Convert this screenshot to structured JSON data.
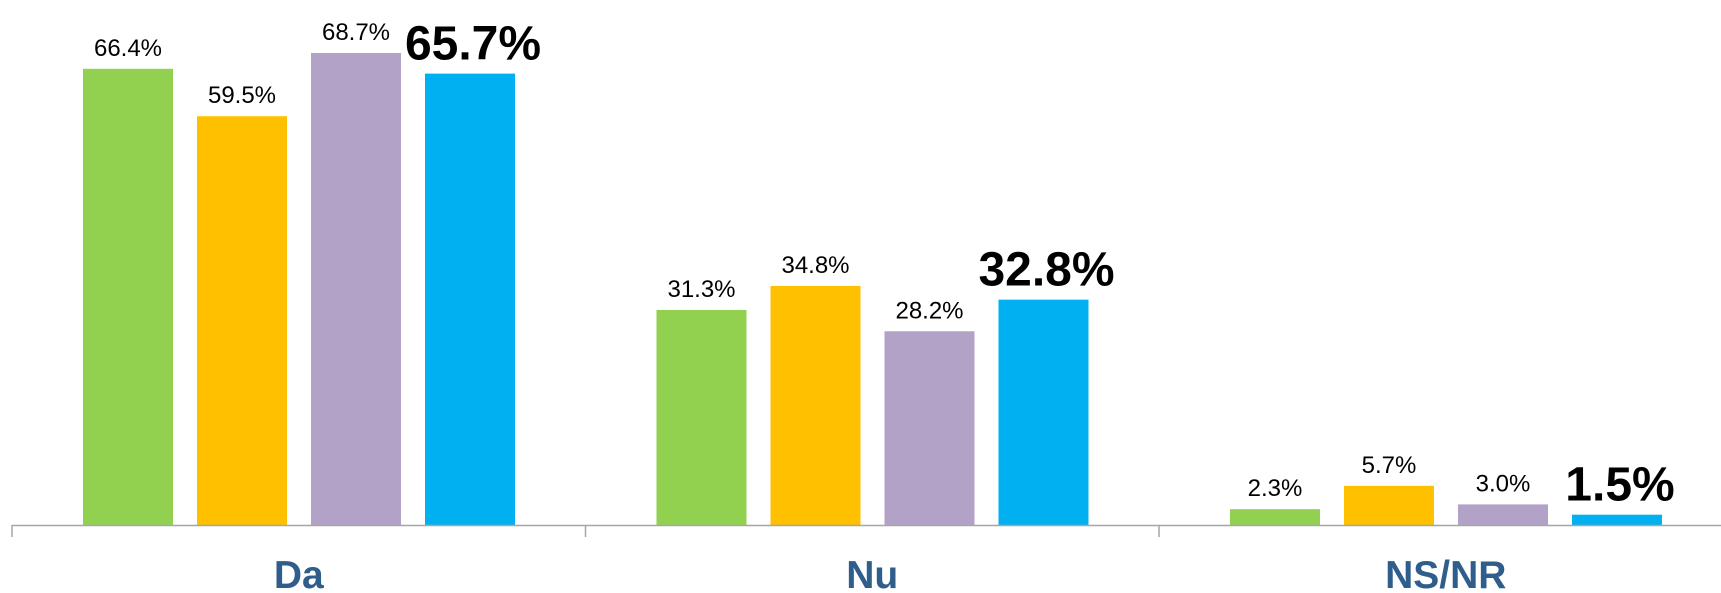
{
  "chart_data": {
    "type": "bar",
    "categories": [
      "Da",
      "Nu",
      "NS/NR"
    ],
    "series": [
      {
        "color": "#92d050",
        "values": [
          66.4,
          31.3,
          2.3
        ],
        "value_labels": [
          "66.4%",
          "31.3%",
          "2.3%"
        ]
      },
      {
        "color": "#ffc000",
        "values": [
          59.5,
          34.8,
          5.7
        ],
        "value_labels": [
          "59.5%",
          "34.8%",
          "5.7%"
        ]
      },
      {
        "color": "#b3a2c7",
        "values": [
          68.7,
          28.2,
          3.0
        ],
        "value_labels": [
          "68.7%",
          "28.2%",
          "3.0%"
        ]
      },
      {
        "color": "#00b0f0",
        "values": [
          65.7,
          32.8,
          1.5
        ],
        "value_labels": [
          "65.7%",
          "32.8%",
          "1.5%"
        ]
      }
    ]
  }
}
